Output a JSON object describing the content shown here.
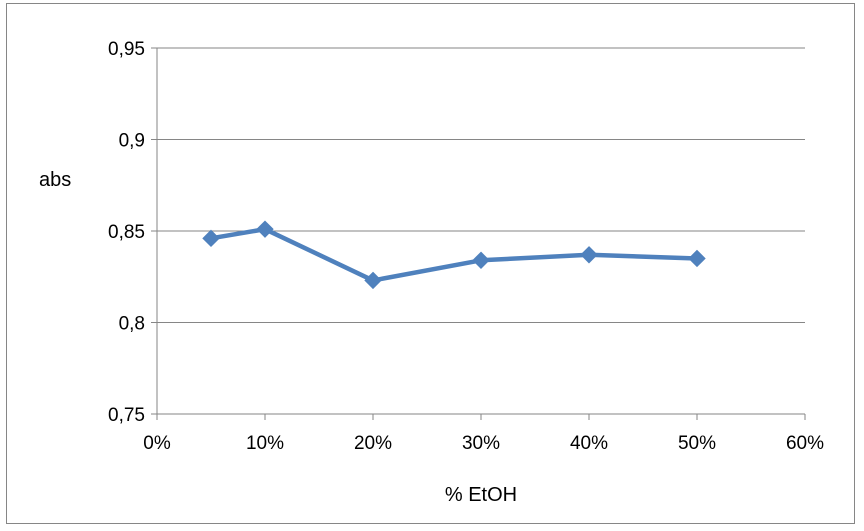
{
  "chart_data": {
    "type": "line",
    "xlabel": "% EtOH",
    "ylabel": "abs",
    "x_ticks": [
      "0%",
      "10%",
      "20%",
      "30%",
      "40%",
      "50%",
      "60%"
    ],
    "y_ticks": [
      "0,75",
      "0,8",
      "0,85",
      "0,9",
      "0,95"
    ],
    "xlim": [
      0,
      6
    ],
    "ylim": [
      0.75,
      0.95
    ],
    "x_categories": [
      "5%",
      "10%",
      "20%",
      "30%",
      "40%",
      "50%"
    ],
    "x_positions": [
      0.5,
      1,
      2,
      3,
      4,
      5
    ],
    "series": [
      {
        "values": [
          0.846,
          0.851,
          0.823,
          0.834,
          0.837,
          0.835
        ],
        "color": "#4F81BD",
        "marker": "diamond"
      }
    ],
    "grid": "horizontal",
    "legend": "none"
  }
}
